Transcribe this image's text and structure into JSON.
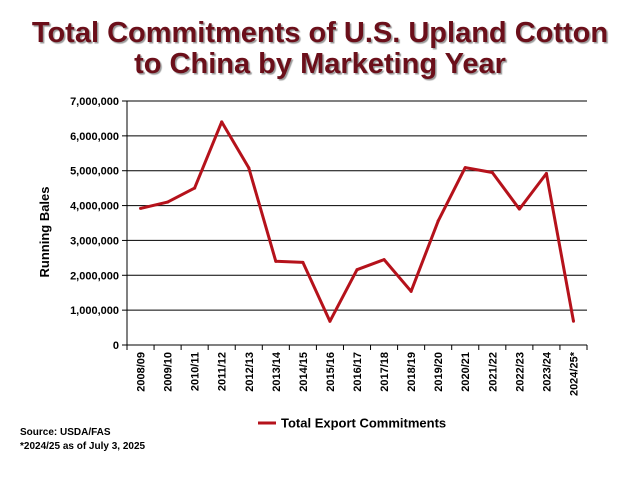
{
  "chart_data": {
    "type": "line",
    "title_line1": "Total Commitments of U.S. Upland Cotton",
    "title_line2": "to China by Marketing Year",
    "ylabel": "Running Bales",
    "xlabel": "",
    "ylim": [
      0,
      7000000
    ],
    "yticks": [
      "0",
      "1,000,000",
      "2,000,000",
      "3,000,000",
      "4,000,000",
      "5,000,000",
      "6,000,000",
      "7,000,000"
    ],
    "ytick_values": [
      0,
      1000000,
      2000000,
      3000000,
      4000000,
      5000000,
      6000000,
      7000000
    ],
    "grid": true,
    "legend_position": "bottom",
    "categories": [
      "2008/09",
      "2009/10",
      "2010/11",
      "2011/12",
      "2012/13",
      "2013/14",
      "2014/15",
      "2015/16",
      "2016/17",
      "2017/18",
      "2018/19",
      "2019/20",
      "2020/21",
      "2021/22",
      "2022/23",
      "2023/24",
      "2024/25*"
    ],
    "series": [
      {
        "name": "Total Export Commitments",
        "color": "#b5121b",
        "values": [
          3920000,
          4100000,
          4500000,
          6400000,
          5080000,
          2400000,
          2370000,
          680000,
          2160000,
          2450000,
          1540000,
          3560000,
          5090000,
          4950000,
          3900000,
          4920000,
          680000
        ]
      }
    ]
  },
  "notes": {
    "source": "Source:  USDA/FAS",
    "asof": "*2024/25 as of July 3, 2025"
  }
}
